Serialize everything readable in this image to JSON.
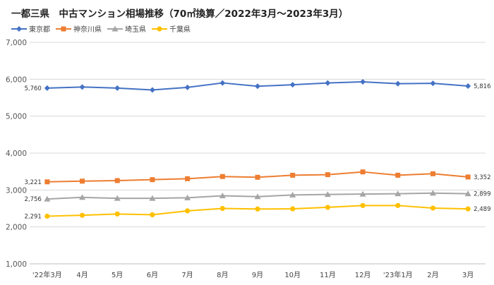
{
  "title": "一都三県　中古マンション相場推移（70㎡換算／2022年3月～2023年3月）",
  "chart_data": {
    "type": "line",
    "categories": [
      "'22年3月",
      "4月",
      "5月",
      "6月",
      "7月",
      "8月",
      "9月",
      "10月",
      "11月",
      "12月",
      "'23年1月",
      "2月",
      "3月"
    ],
    "ylim": [
      1000,
      7000
    ],
    "yticks": [
      "1,000",
      "2,000",
      "3,000",
      "4,000",
      "5,000",
      "6,000",
      "7,000"
    ],
    "grid": true,
    "legend_position": "top-left",
    "series": [
      {
        "name": "東京都",
        "color": "#4472C4",
        "marker": "diamond",
        "values": [
          5760,
          5790,
          5760,
          5710,
          5780,
          5900,
          5810,
          5850,
          5900,
          5930,
          5880,
          5890,
          5816
        ],
        "first_label": "5,760",
        "last_label": "5,816"
      },
      {
        "name": "神奈川県",
        "color": "#ED7D31",
        "marker": "square",
        "values": [
          3221,
          3240,
          3255,
          3280,
          3305,
          3365,
          3345,
          3400,
          3415,
          3490,
          3400,
          3440,
          3352
        ],
        "first_label": "3,221",
        "last_label": "3,352"
      },
      {
        "name": "埼玉県",
        "color": "#A5A5A5",
        "marker": "triangle",
        "values": [
          2756,
          2800,
          2775,
          2775,
          2790,
          2845,
          2820,
          2865,
          2880,
          2890,
          2900,
          2915,
          2899
        ],
        "first_label": "2,756",
        "last_label": "2,899"
      },
      {
        "name": "千葉県",
        "color": "#FFC000",
        "marker": "circle",
        "values": [
          2291,
          2315,
          2350,
          2330,
          2435,
          2500,
          2485,
          2490,
          2530,
          2580,
          2580,
          2510,
          2489
        ],
        "first_label": "2,291",
        "last_label": "2,489"
      }
    ]
  }
}
